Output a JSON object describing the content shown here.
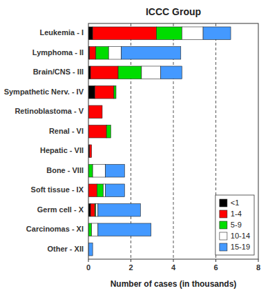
{
  "chart_data": {
    "type": "bar",
    "orientation": "horizontal",
    "stacked": true,
    "title": "ICCC Group",
    "xlabel": "Number of cases (in thousands)",
    "categories": [
      "Leukemia - I",
      "Lymphoma - II",
      "Brain/CNS - III",
      "Sympathetic Nerv. - IV",
      "Retinoblastoma - V",
      "Renal - VI",
      "Hepatic - VII",
      "Bone - VIII",
      "Soft tissue - IX",
      "Germ cell - X",
      "Carcinomas - XI",
      "Other - XII"
    ],
    "series": [
      {
        "name": "<1",
        "color": "#000000",
        "values": [
          0.2,
          0.05,
          0.1,
          0.3,
          0.0,
          0.0,
          0.05,
          0.0,
          0.0,
          0.1,
          0.0,
          0.0
        ]
      },
      {
        "name": "1-4",
        "color": "#ff0000",
        "values": [
          3.0,
          0.3,
          1.3,
          0.9,
          0.65,
          0.85,
          0.1,
          0.0,
          0.4,
          0.2,
          0.0,
          0.0
        ]
      },
      {
        "name": "5-9",
        "color": "#00dd00",
        "values": [
          1.2,
          0.6,
          1.1,
          0.1,
          0.0,
          0.2,
          0.0,
          0.2,
          0.3,
          0.05,
          0.15,
          0.0
        ]
      },
      {
        "name": "10-14",
        "color": "#ffffff",
        "values": [
          1.0,
          0.6,
          0.9,
          0.0,
          0.0,
          0.0,
          0.0,
          0.6,
          0.1,
          0.1,
          0.3,
          0.0
        ]
      },
      {
        "name": "15-19",
        "color": "#4499ff",
        "values": [
          1.3,
          2.8,
          1.0,
          0.0,
          0.0,
          0.0,
          0.0,
          0.9,
          0.9,
          2.0,
          2.5,
          0.2
        ]
      }
    ],
    "xlim": [
      0,
      8
    ],
    "xticks": [
      0,
      2,
      4,
      6,
      8
    ],
    "vlines": [
      2,
      4,
      6
    ],
    "legend": "lower right"
  }
}
